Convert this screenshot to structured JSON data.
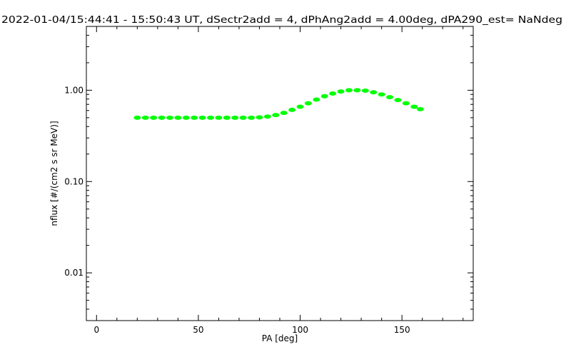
{
  "chart_data": {
    "type": "scatter",
    "title": "2022-01-04/15:44:41 - 15:50:43 UT, dSectr2add = 4, dPhAng2add = 4.00deg, dPA290_est=    NaNdeg",
    "xlabel": "PA [deg]",
    "ylabel": "nflux [#/(cm2 s sr MeV)]",
    "xlim": [
      -5,
      185
    ],
    "ylim": [
      0.003,
      5
    ],
    "y_scale": "log",
    "x_ticks": [
      {
        "value": 0,
        "label": "0"
      },
      {
        "value": 50,
        "label": "50"
      },
      {
        "value": 100,
        "label": "100"
      },
      {
        "value": 150,
        "label": "150"
      }
    ],
    "y_ticks": [
      {
        "value": 0.01,
        "label": "0.01"
      },
      {
        "value": 0.1,
        "label": "0.10"
      },
      {
        "value": 1,
        "label": "1.00"
      }
    ],
    "grid": false,
    "marker_color": "#00ff00",
    "series": [
      {
        "x": [
          20,
          24,
          28,
          32,
          36,
          40,
          44,
          48,
          52,
          56,
          60,
          64,
          68,
          72,
          76,
          80,
          84,
          88,
          92,
          96,
          100,
          104,
          108,
          112,
          116,
          120,
          124,
          128,
          132,
          136,
          140,
          144,
          148,
          152,
          156,
          159
        ],
        "y": [
          0.5,
          0.5,
          0.5,
          0.5,
          0.5,
          0.5,
          0.5,
          0.5,
          0.5,
          0.5,
          0.5,
          0.5,
          0.5,
          0.5,
          0.5,
          0.505,
          0.515,
          0.535,
          0.565,
          0.61,
          0.66,
          0.72,
          0.79,
          0.86,
          0.92,
          0.97,
          1.0,
          1.0,
          0.99,
          0.95,
          0.9,
          0.84,
          0.78,
          0.72,
          0.66,
          0.62
        ]
      }
    ]
  }
}
